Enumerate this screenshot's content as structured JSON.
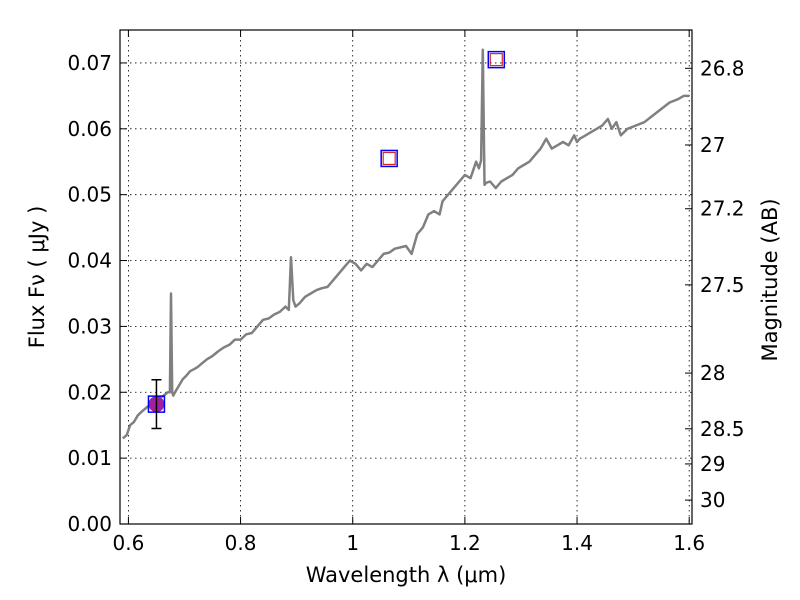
{
  "chart_data": {
    "type": "line",
    "xlabel": "Wavelength  λ (μm)",
    "ylabel": "Flux  Fν ( μJy )",
    "y2label": "Magnitude (AB)",
    "xlim": [
      0.585,
      1.605
    ],
    "ylim": [
      0.0,
      0.075
    ],
    "x_ticks": [
      0.6,
      0.8,
      1.0,
      1.2,
      1.4,
      1.6
    ],
    "x_tick_labels": [
      "0.6",
      "0.8",
      "1",
      "1.2",
      "1.4",
      "1.6"
    ],
    "y_ticks": [
      0.0,
      0.01,
      0.02,
      0.03,
      0.04,
      0.05,
      0.06,
      0.07
    ],
    "y_tick_labels": [
      "0.00",
      "0.01",
      "0.02",
      "0.03",
      "0.04",
      "0.05",
      "0.06",
      "0.07"
    ],
    "y2_ticks": [
      26.8,
      27.0,
      27.2,
      27.5,
      28.0,
      28.5,
      29.0,
      30.0
    ],
    "y2_tick_labels": [
      "26.8",
      "27",
      "27.2",
      "27.5",
      "28",
      "28.5",
      "29",
      "30"
    ],
    "grid": true,
    "colors": {
      "spectrum": "#808080",
      "photometry_square": "#0000ff",
      "model_square": "#d62728",
      "detection_dot": "#a020a0",
      "errorbar": "#000000"
    },
    "series": [
      {
        "name": "spectrum",
        "x": [
          0.59,
          0.597,
          0.603,
          0.61,
          0.617,
          0.623,
          0.63,
          0.637,
          0.643,
          0.65,
          0.657,
          0.663,
          0.67,
          0.674,
          0.676,
          0.678,
          0.68,
          0.683,
          0.69,
          0.697,
          0.703,
          0.71,
          0.717,
          0.723,
          0.73,
          0.74,
          0.75,
          0.76,
          0.77,
          0.78,
          0.79,
          0.8,
          0.81,
          0.82,
          0.83,
          0.84,
          0.85,
          0.86,
          0.87,
          0.88,
          0.886,
          0.89,
          0.894,
          0.898,
          0.905,
          0.915,
          0.925,
          0.935,
          0.945,
          0.955,
          0.965,
          0.975,
          0.985,
          0.995,
          1.005,
          1.015,
          1.025,
          1.035,
          1.045,
          1.055,
          1.065,
          1.075,
          1.085,
          1.095,
          1.105,
          1.115,
          1.125,
          1.135,
          1.145,
          1.155,
          1.16,
          1.17,
          1.18,
          1.19,
          1.2,
          1.21,
          1.22,
          1.225,
          1.229,
          1.232,
          1.235,
          1.238,
          1.245,
          1.255,
          1.265,
          1.275,
          1.285,
          1.295,
          1.305,
          1.315,
          1.325,
          1.335,
          1.345,
          1.355,
          1.365,
          1.375,
          1.385,
          1.395,
          1.4,
          1.405,
          1.415,
          1.425,
          1.435,
          1.445,
          1.455,
          1.462,
          1.47,
          1.478,
          1.49,
          1.505,
          1.52,
          1.535,
          1.55,
          1.565,
          1.58,
          1.59,
          1.6
        ],
        "y": [
          0.013,
          0.0135,
          0.015,
          0.0155,
          0.0165,
          0.017,
          0.0175,
          0.018,
          0.0185,
          0.0188,
          0.0192,
          0.0195,
          0.02,
          0.02,
          0.035,
          0.02,
          0.0195,
          0.02,
          0.021,
          0.022,
          0.0225,
          0.0232,
          0.0235,
          0.0238,
          0.0243,
          0.025,
          0.0255,
          0.0262,
          0.0268,
          0.0272,
          0.028,
          0.028,
          0.0288,
          0.029,
          0.03,
          0.031,
          0.0312,
          0.0318,
          0.0322,
          0.033,
          0.0325,
          0.0405,
          0.034,
          0.033,
          0.0335,
          0.0345,
          0.035,
          0.0355,
          0.0358,
          0.036,
          0.037,
          0.038,
          0.039,
          0.04,
          0.0395,
          0.0385,
          0.0395,
          0.039,
          0.04,
          0.041,
          0.0412,
          0.0418,
          0.042,
          0.0422,
          0.041,
          0.044,
          0.045,
          0.047,
          0.0475,
          0.047,
          0.049,
          0.05,
          0.051,
          0.052,
          0.053,
          0.0525,
          0.055,
          0.054,
          0.0552,
          0.072,
          0.0515,
          0.0518,
          0.052,
          0.051,
          0.052,
          0.0525,
          0.053,
          0.054,
          0.0545,
          0.055,
          0.056,
          0.057,
          0.0585,
          0.057,
          0.0575,
          0.058,
          0.0575,
          0.059,
          0.058,
          0.0585,
          0.059,
          0.0595,
          0.06,
          0.0605,
          0.0615,
          0.06,
          0.061,
          0.059,
          0.06,
          0.0605,
          0.061,
          0.062,
          0.063,
          0.064,
          0.0645,
          0.065,
          0.065
        ]
      },
      {
        "name": "photometry",
        "points": [
          {
            "x": 0.65,
            "y": 0.0182,
            "yerr": 0.0037,
            "detected": true
          },
          {
            "x": 1.065,
            "y": 0.0555,
            "detected": false
          },
          {
            "x": 1.256,
            "y": 0.0705,
            "detected": false
          }
        ]
      }
    ]
  }
}
